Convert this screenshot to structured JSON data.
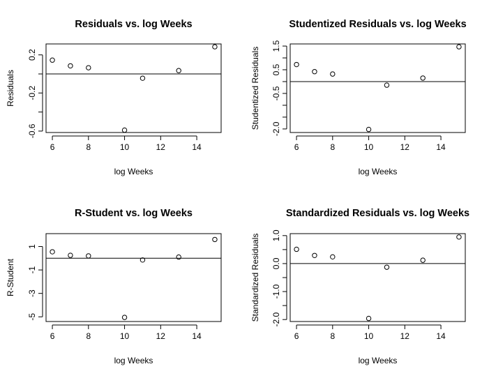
{
  "chart_data": [
    {
      "type": "scatter",
      "title": "Residuals vs. log Weeks",
      "xlabel": "log Weeks",
      "ylabel": "Residuals",
      "xlim": [
        5.65,
        15.35
      ],
      "ylim": [
        -0.615,
        0.315
      ],
      "xticks": [
        6,
        8,
        10,
        12,
        14
      ],
      "xtick_labels": [
        "6",
        "8",
        "10",
        "12",
        "14"
      ],
      "yticks": [
        0.2,
        0.0,
        -0.2,
        -0.4,
        -0.6
      ],
      "ytick_labels": [
        "0.2",
        "",
        "-0.2",
        "",
        "-0.6"
      ],
      "hline": 0.0,
      "x": [
        6,
        7,
        8,
        10,
        11,
        13,
        15
      ],
      "y": [
        0.145,
        0.085,
        0.065,
        -0.59,
        -0.045,
        0.035,
        0.285
      ]
    },
    {
      "type": "scatter",
      "title": "Studentized Residuals vs. log Weeks",
      "xlabel": "log Weeks",
      "ylabel": "Studentized Residuals",
      "xlim": [
        5.65,
        15.35
      ],
      "ylim": [
        -2.15,
        1.59
      ],
      "xticks": [
        6,
        8,
        10,
        12,
        14
      ],
      "xtick_labels": [
        "6",
        "8",
        "10",
        "12",
        "14"
      ],
      "yticks": [
        1.5,
        1.0,
        0.5,
        0.0,
        -0.5,
        -1.0,
        -1.5,
        -2.0
      ],
      "ytick_labels": [
        "1.5",
        "",
        "0.5",
        "",
        "-0.5",
        "",
        "",
        "-2.0"
      ],
      "hline": 0.0,
      "x": [
        6,
        7,
        8,
        10,
        11,
        13,
        15
      ],
      "y": [
        0.72,
        0.42,
        0.32,
        -2.02,
        -0.15,
        0.15,
        1.47
      ]
    },
    {
      "type": "scatter",
      "title": "R-Student vs. log Weeks",
      "xlabel": "log Weeks",
      "ylabel": "R-Student",
      "xlim": [
        5.65,
        15.35
      ],
      "ylim": [
        -5.4,
        2.1
      ],
      "xticks": [
        6,
        8,
        10,
        12,
        14
      ],
      "xtick_labels": [
        "6",
        "8",
        "10",
        "12",
        "14"
      ],
      "yticks": [
        1,
        -1,
        -3,
        -5
      ],
      "ytick_labels": [
        "1",
        "-1",
        "-3",
        "-5"
      ],
      "hline": 0.0,
      "x": [
        6,
        7,
        8,
        10,
        11,
        13,
        15
      ],
      "y": [
        0.55,
        0.25,
        0.2,
        -5.05,
        -0.15,
        0.1,
        1.6
      ]
    },
    {
      "type": "scatter",
      "title": "Standardized Residuals vs. log Weeks",
      "xlabel": "log Weeks",
      "ylabel": "Standardized Residuals",
      "xlim": [
        5.65,
        15.35
      ],
      "ylim": [
        -2.07,
        1.07
      ],
      "xticks": [
        6,
        8,
        10,
        12,
        14
      ],
      "xtick_labels": [
        "6",
        "8",
        "10",
        "12",
        "14"
      ],
      "yticks": [
        1.0,
        0.5,
        0.0,
        -0.5,
        -1.0,
        -1.5,
        -2.0
      ],
      "ytick_labels": [
        "1.0",
        "",
        "0.0",
        "",
        "-1.0",
        "",
        "-2.0"
      ],
      "hline": 0.0,
      "x": [
        6,
        7,
        8,
        10,
        11,
        13,
        15
      ],
      "y": [
        0.51,
        0.29,
        0.24,
        -1.96,
        -0.13,
        0.12,
        0.95
      ]
    }
  ]
}
